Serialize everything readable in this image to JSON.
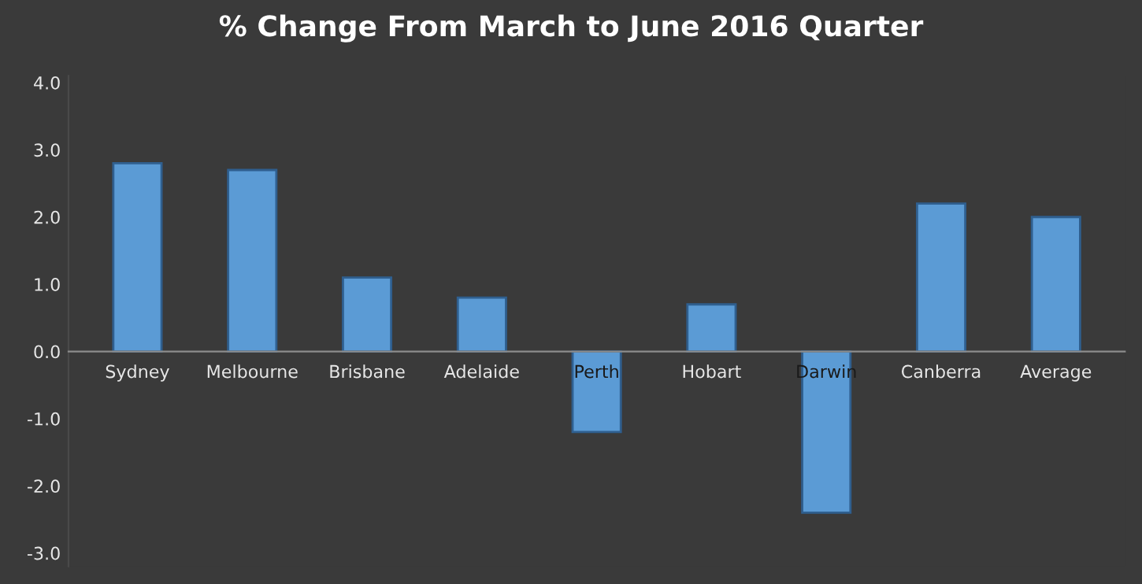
{
  "chart_data": {
    "type": "bar",
    "title": "% Change From March to June 2016 Quarter",
    "categories": [
      "Sydney",
      "Melbourne",
      "Brisbane",
      "Adelaide",
      "Perth",
      "Hobart",
      "Darwin",
      "Canberra",
      "Average"
    ],
    "values": [
      2.8,
      2.7,
      1.1,
      0.8,
      -1.2,
      0.7,
      -2.4,
      2.2,
      2.0
    ],
    "color": "#5b9bd5",
    "ylim": [
      -3.2,
      4.1
    ],
    "yticks": [
      {
        "value": -3,
        "label": "-3.0"
      },
      {
        "value": -2,
        "label": "-2.0"
      },
      {
        "value": -1,
        "label": "-1.0"
      },
      {
        "value": 0,
        "label": "0.0"
      },
      {
        "value": 1,
        "label": "1.0"
      },
      {
        "value": 2,
        "label": "2.0"
      },
      {
        "value": 3,
        "label": "3.0"
      },
      {
        "value": 4,
        "label": "4.0"
      }
    ],
    "grid": false
  }
}
